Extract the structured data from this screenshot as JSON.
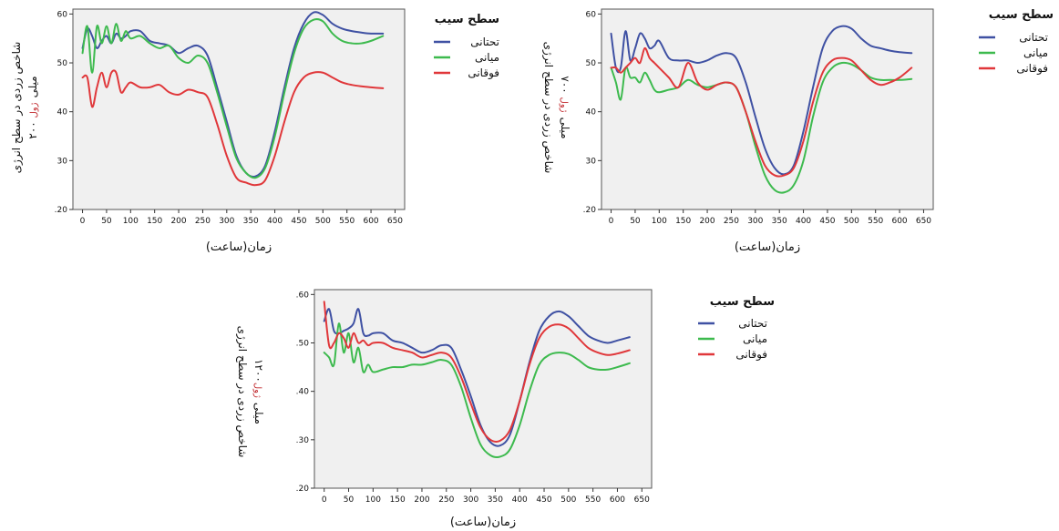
{
  "chart_data": [
    {
      "type": "line",
      "xlabel": "زمان(ساعت)",
      "ylabel_main": "شاخص زردی در سطح انرژی",
      "ylabel_sub": "۲۰۰ میلی",
      "ylabel_unit": "ژول",
      "x_ticks": [
        "0",
        "50",
        "100",
        "150",
        "200",
        "250",
        "300",
        "350",
        "400",
        "450",
        "500",
        "550",
        "600",
        "650"
      ],
      "y_ticks": [
        ".20",
        "30",
        "40",
        "50",
        "60"
      ],
      "xlim": [
        -20,
        670
      ],
      "ylim": [
        0.2,
        0.61
      ],
      "grid": false,
      "legend_title": "سطح سیب",
      "legend_placement": "right",
      "series": [
        {
          "name": "تحتانی",
          "color": "#3f51a3",
          "x": [
            0,
            10,
            20,
            30,
            40,
            50,
            60,
            70,
            80,
            90,
            100,
            120,
            140,
            160,
            180,
            200,
            220,
            240,
            260,
            280,
            300,
            320,
            340,
            360,
            380,
            400,
            420,
            440,
            460,
            480,
            500,
            520,
            540,
            560,
            580,
            600,
            625
          ],
          "y": [
            0.53,
            0.57,
            0.555,
            0.53,
            0.545,
            0.555,
            0.54,
            0.56,
            0.55,
            0.555,
            0.565,
            0.565,
            0.545,
            0.54,
            0.535,
            0.52,
            0.53,
            0.535,
            0.515,
            0.45,
            0.38,
            0.31,
            0.275,
            0.268,
            0.29,
            0.36,
            0.45,
            0.53,
            0.58,
            0.603,
            0.598,
            0.58,
            0.57,
            0.565,
            0.562,
            0.56,
            0.56
          ]
        },
        {
          "name": "میانی",
          "color": "#3dba4e",
          "x": [
            0,
            10,
            20,
            30,
            40,
            50,
            60,
            70,
            80,
            90,
            100,
            120,
            140,
            160,
            180,
            200,
            220,
            240,
            260,
            280,
            300,
            320,
            340,
            360,
            380,
            400,
            420,
            440,
            460,
            480,
            500,
            520,
            540,
            560,
            580,
            600,
            625
          ],
          "y": [
            0.52,
            0.575,
            0.48,
            0.575,
            0.54,
            0.575,
            0.54,
            0.58,
            0.545,
            0.565,
            0.55,
            0.555,
            0.54,
            0.53,
            0.535,
            0.51,
            0.5,
            0.515,
            0.5,
            0.44,
            0.37,
            0.305,
            0.275,
            0.265,
            0.285,
            0.35,
            0.44,
            0.52,
            0.57,
            0.588,
            0.585,
            0.56,
            0.545,
            0.54,
            0.54,
            0.545,
            0.555
          ]
        },
        {
          "name": "فوقانی",
          "color": "#e0373a",
          "x": [
            0,
            10,
            20,
            30,
            40,
            50,
            60,
            70,
            80,
            90,
            100,
            120,
            140,
            160,
            180,
            200,
            220,
            240,
            260,
            280,
            300,
            320,
            340,
            360,
            380,
            400,
            420,
            440,
            460,
            480,
            500,
            520,
            540,
            560,
            580,
            600,
            625
          ],
          "y": [
            0.47,
            0.47,
            0.41,
            0.45,
            0.48,
            0.45,
            0.48,
            0.48,
            0.44,
            0.45,
            0.46,
            0.45,
            0.45,
            0.455,
            0.44,
            0.435,
            0.445,
            0.44,
            0.43,
            0.375,
            0.31,
            0.265,
            0.255,
            0.25,
            0.26,
            0.31,
            0.38,
            0.44,
            0.47,
            0.48,
            0.48,
            0.47,
            0.46,
            0.455,
            0.452,
            0.45,
            0.448
          ]
        }
      ]
    },
    {
      "type": "line",
      "xlabel": "زمان(ساعت)",
      "ylabel_main": "شاخص زردی در سطح انرژی",
      "ylabel_sub": "۷۰۰ میلی",
      "ylabel_unit": "ژول",
      "x_ticks": [
        "0",
        "50",
        "100",
        "150",
        "200",
        "250",
        "300",
        "350",
        "400",
        "450",
        "500",
        "550",
        "600",
        "650"
      ],
      "y_ticks": [
        ".20",
        "30",
        "40",
        "50",
        "60"
      ],
      "xlim": [
        -20,
        670
      ],
      "ylim": [
        0.2,
        0.61
      ],
      "grid": false,
      "legend_title": "سطح سیب",
      "legend_placement": "right",
      "series": [
        {
          "name": "تحتانی",
          "color": "#3f51a3",
          "x": [
            0,
            10,
            20,
            30,
            40,
            50,
            60,
            70,
            80,
            90,
            100,
            120,
            140,
            160,
            180,
            200,
            220,
            240,
            260,
            280,
            300,
            320,
            340,
            360,
            380,
            400,
            420,
            440,
            460,
            480,
            500,
            520,
            540,
            560,
            580,
            600,
            625
          ],
          "y": [
            0.56,
            0.49,
            0.49,
            0.565,
            0.505,
            0.53,
            0.56,
            0.55,
            0.53,
            0.535,
            0.545,
            0.51,
            0.505,
            0.505,
            0.5,
            0.505,
            0.515,
            0.52,
            0.51,
            0.46,
            0.39,
            0.325,
            0.285,
            0.272,
            0.29,
            0.36,
            0.45,
            0.53,
            0.565,
            0.575,
            0.57,
            0.55,
            0.535,
            0.53,
            0.525,
            0.522,
            0.52
          ]
        },
        {
          "name": "میانی",
          "color": "#3dba4e",
          "x": [
            0,
            10,
            20,
            30,
            40,
            50,
            60,
            70,
            80,
            90,
            100,
            120,
            140,
            160,
            180,
            200,
            220,
            240,
            260,
            280,
            300,
            320,
            340,
            360,
            380,
            400,
            420,
            440,
            460,
            480,
            500,
            520,
            540,
            560,
            580,
            600,
            625
          ],
          "y": [
            0.49,
            0.46,
            0.425,
            0.49,
            0.47,
            0.47,
            0.46,
            0.48,
            0.465,
            0.445,
            0.44,
            0.445,
            0.45,
            0.465,
            0.455,
            0.45,
            0.455,
            0.46,
            0.45,
            0.4,
            0.33,
            0.27,
            0.24,
            0.235,
            0.25,
            0.3,
            0.39,
            0.46,
            0.49,
            0.5,
            0.497,
            0.485,
            0.47,
            0.465,
            0.465,
            0.465,
            0.467
          ]
        },
        {
          "name": "فوقانی",
          "color": "#e0373a",
          "x": [
            0,
            10,
            20,
            30,
            40,
            50,
            60,
            70,
            80,
            90,
            100,
            120,
            140,
            160,
            180,
            200,
            220,
            240,
            260,
            280,
            300,
            320,
            340,
            360,
            380,
            400,
            420,
            440,
            460,
            480,
            500,
            520,
            540,
            560,
            580,
            600,
            625
          ],
          "y": [
            0.49,
            0.49,
            0.48,
            0.49,
            0.5,
            0.51,
            0.5,
            0.53,
            0.51,
            0.5,
            0.49,
            0.47,
            0.45,
            0.5,
            0.46,
            0.445,
            0.455,
            0.46,
            0.45,
            0.4,
            0.34,
            0.29,
            0.27,
            0.27,
            0.285,
            0.34,
            0.42,
            0.48,
            0.505,
            0.51,
            0.505,
            0.485,
            0.465,
            0.455,
            0.46,
            0.47,
            0.49
          ]
        }
      ]
    },
    {
      "type": "line",
      "xlabel": "زمان(ساعت)",
      "ylabel_main": "شاخص زردی در سطح انرژی",
      "ylabel_sub": "۱۲۰۰میلی",
      "ylabel_unit": "ژول",
      "x_ticks": [
        "0",
        "50",
        "100",
        "150",
        "200",
        "250",
        "300",
        "350",
        "400",
        "450",
        "500",
        "550",
        "600",
        "650"
      ],
      "y_ticks": [
        ".20",
        ".30",
        ".40",
        ".50",
        ".60"
      ],
      "xlim": [
        -20,
        670
      ],
      "ylim": [
        0.2,
        0.61
      ],
      "grid": false,
      "legend_title": "سطح سیب",
      "legend_placement": "right",
      "series": [
        {
          "name": "تحتانی",
          "color": "#3f51a3",
          "x": [
            0,
            10,
            20,
            30,
            40,
            50,
            60,
            70,
            80,
            90,
            100,
            120,
            140,
            160,
            180,
            200,
            220,
            240,
            260,
            280,
            300,
            320,
            340,
            360,
            380,
            400,
            420,
            440,
            460,
            480,
            500,
            520,
            540,
            560,
            580,
            600,
            625
          ],
          "y": [
            0.545,
            0.57,
            0.525,
            0.52,
            0.525,
            0.53,
            0.54,
            0.57,
            0.52,
            0.515,
            0.52,
            0.52,
            0.505,
            0.5,
            0.49,
            0.48,
            0.485,
            0.495,
            0.49,
            0.445,
            0.39,
            0.33,
            0.295,
            0.288,
            0.31,
            0.38,
            0.46,
            0.525,
            0.555,
            0.565,
            0.555,
            0.535,
            0.515,
            0.505,
            0.5,
            0.505,
            0.512
          ]
        },
        {
          "name": "میانی",
          "color": "#3dba4e",
          "x": [
            0,
            10,
            20,
            30,
            40,
            50,
            60,
            70,
            80,
            90,
            100,
            120,
            140,
            160,
            180,
            200,
            220,
            240,
            260,
            280,
            300,
            320,
            340,
            360,
            380,
            400,
            420,
            440,
            460,
            480,
            500,
            520,
            540,
            560,
            580,
            600,
            625
          ],
          "y": [
            0.48,
            0.47,
            0.455,
            0.54,
            0.48,
            0.52,
            0.46,
            0.49,
            0.44,
            0.455,
            0.44,
            0.445,
            0.45,
            0.45,
            0.455,
            0.455,
            0.46,
            0.465,
            0.455,
            0.41,
            0.345,
            0.29,
            0.268,
            0.265,
            0.28,
            0.33,
            0.4,
            0.455,
            0.475,
            0.48,
            0.477,
            0.465,
            0.45,
            0.445,
            0.445,
            0.45,
            0.458
          ]
        },
        {
          "name": "فوقانی",
          "color": "#e0373a",
          "x": [
            0,
            10,
            20,
            30,
            40,
            50,
            60,
            70,
            80,
            90,
            100,
            120,
            140,
            160,
            180,
            200,
            220,
            240,
            260,
            280,
            300,
            320,
            340,
            360,
            380,
            400,
            420,
            440,
            460,
            480,
            500,
            520,
            540,
            560,
            580,
            600,
            625
          ],
          "y": [
            0.585,
            0.495,
            0.5,
            0.52,
            0.51,
            0.49,
            0.52,
            0.5,
            0.505,
            0.495,
            0.5,
            0.5,
            0.49,
            0.485,
            0.48,
            0.47,
            0.475,
            0.48,
            0.47,
            0.43,
            0.375,
            0.325,
            0.3,
            0.298,
            0.32,
            0.38,
            0.455,
            0.51,
            0.533,
            0.538,
            0.53,
            0.51,
            0.49,
            0.48,
            0.475,
            0.478,
            0.485
          ]
        }
      ]
    }
  ]
}
